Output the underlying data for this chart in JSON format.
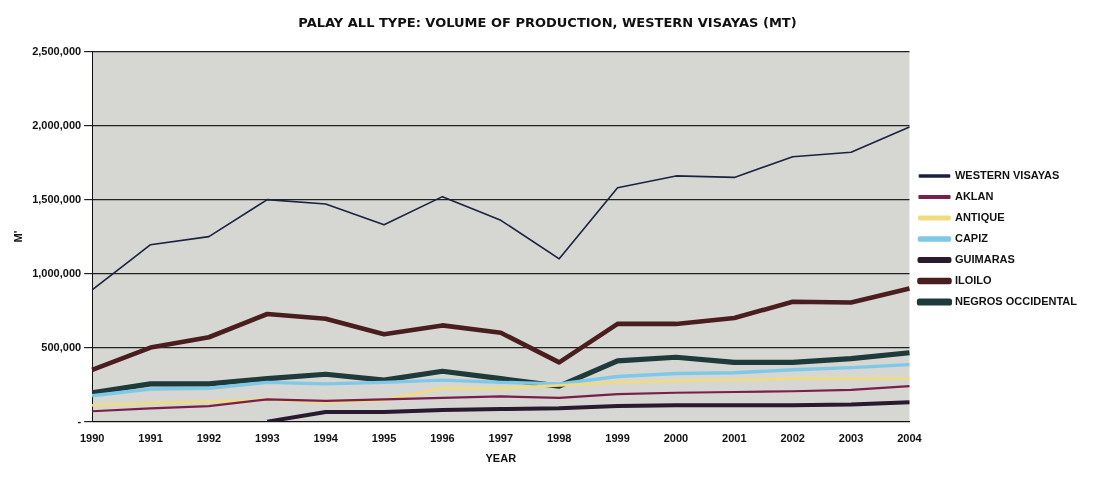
{
  "chart_data": {
    "type": "line",
    "title": "PALAY ALL TYPE: VOLUME OF PRODUCTION, WESTERN VISAYAS (MT)",
    "xlabel": "YEAR",
    "ylabel": "M'",
    "categories": [
      "1990",
      "1991",
      "1992",
      "1993",
      "1994",
      "1995",
      "1996",
      "1997",
      "1998",
      "1999",
      "2000",
      "2001",
      "2002",
      "2003",
      "2004"
    ],
    "series": [
      {
        "name": "WESTERN VISAYAS",
        "color": "#1a2340",
        "values": [
          890000,
          1195000,
          1250000,
          1500000,
          1470000,
          1330000,
          1520000,
          1360000,
          1100000,
          1580000,
          1660000,
          1650000,
          1790000,
          1820000,
          1990000
        ]
      },
      {
        "name": "AKLAN",
        "color": "#7a1f4a",
        "values": [
          70000,
          90000,
          105000,
          150000,
          140000,
          150000,
          160000,
          170000,
          160000,
          185000,
          195000,
          200000,
          205000,
          215000,
          240000
        ]
      },
      {
        "name": "ANTIQUE",
        "color": "#f0dc80",
        "values": [
          110000,
          125000,
          135000,
          150000,
          130000,
          145000,
          225000,
          225000,
          245000,
          265000,
          275000,
          285000,
          290000,
          290000,
          290000
        ]
      },
      {
        "name": "CAPIZ",
        "color": "#80c8e8",
        "values": [
          175000,
          220000,
          225000,
          265000,
          255000,
          265000,
          280000,
          265000,
          255000,
          305000,
          325000,
          330000,
          350000,
          365000,
          385000
        ]
      },
      {
        "name": "GUIMARAS",
        "color": "#2a1a30",
        "values": [
          null,
          null,
          null,
          0,
          65000,
          65000,
          78000,
          85000,
          90000,
          105000,
          110000,
          110000,
          110000,
          115000,
          130000
        ]
      },
      {
        "name": "ILOILO",
        "color": "#4a1e1e",
        "values": [
          350000,
          500000,
          570000,
          727000,
          695000,
          590000,
          650000,
          600000,
          400000,
          660000,
          660000,
          700000,
          810000,
          805000,
          900000
        ]
      },
      {
        "name": "NEGROS OCCIDENTAL",
        "color": "#1e3a3a",
        "values": [
          195000,
          255000,
          255000,
          290000,
          320000,
          280000,
          340000,
          290000,
          240000,
          410000,
          435000,
          400000,
          400000,
          425000,
          465000
        ]
      }
    ],
    "ylim": [
      0,
      2500000
    ],
    "yticks": [
      {
        "value": 0,
        "label": "-"
      },
      {
        "value": 500000,
        "label": "500,000"
      },
      {
        "value": 1000000,
        "label": "1,000,000"
      },
      {
        "value": 1500000,
        "label": "1,500,000"
      },
      {
        "value": 2000000,
        "label": "2,000,000"
      },
      {
        "value": 2500000,
        "label": "2,500,000"
      }
    ],
    "grid": "y",
    "legend": "right",
    "marker": "none",
    "line_style": "solid"
  }
}
